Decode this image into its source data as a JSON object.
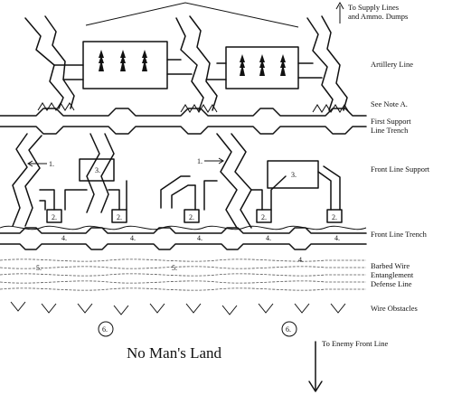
{
  "labels": {
    "supply": [
      "To Supply Lines",
      "and Ammo. Dumps"
    ],
    "artillery": "Artillery Line",
    "note": "See Note A.",
    "first_support": [
      "First Support",
      "Line Trench"
    ],
    "front_support": "Front Line Support",
    "front_trench": "Front Line Trench",
    "barbed_wire": [
      "Barbed Wire",
      "Entanglement",
      "Defense Line"
    ],
    "wire_obstacles": "Wire Obstacles",
    "no_mans_land": "No Man's Land",
    "enemy": "To Enemy Front Line"
  },
  "markers": {
    "one": "1.",
    "two": "2.",
    "three": "3.",
    "four": "4.",
    "five": "5.",
    "six": "6."
  }
}
